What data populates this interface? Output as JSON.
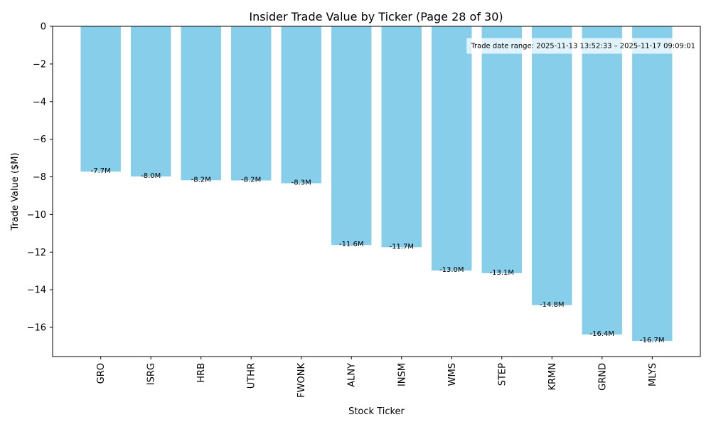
{
  "chart_data": {
    "type": "bar",
    "title": "Insider Trade Value by Ticker (Page 28 of 30)",
    "xlabel": "Stock Ticker",
    "ylabel": "Trade Value ($M)",
    "categories": [
      "GRO",
      "ISRG",
      "HRB",
      "UTHR",
      "FWONK",
      "ALNY",
      "INSM",
      "WMS",
      "STEP",
      "KRMN",
      "GRND",
      "MLYS"
    ],
    "values": [
      -7.72,
      -7.98,
      -8.18,
      -8.19,
      -8.34,
      -11.62,
      -11.74,
      -12.98,
      -13.12,
      -14.82,
      -16.38,
      -16.72
    ],
    "data_labels": [
      "-7.7M",
      "-8.0M",
      "-8.2M",
      "-8.2M",
      "-8.3M",
      "-11.6M",
      "-11.7M",
      "-13.0M",
      "-13.1M",
      "-14.8M",
      "-16.4M",
      "-16.7M"
    ],
    "ylim": [
      -17.55,
      0
    ],
    "yticks": [
      0,
      -2,
      -4,
      -6,
      -8,
      -10,
      -12,
      -14,
      -16
    ],
    "ytick_labels": [
      "0",
      "−2",
      "−4",
      "−6",
      "−8",
      "−10",
      "−12",
      "−14",
      "−16"
    ],
    "bar_color": "#87ceeb",
    "grid": false,
    "annotation": {
      "text": "Trade date range: 2025-11-13 13:52:33 – 2025-11-17 09:09:01",
      "placement": "top-right",
      "box_color": "#ffffff"
    }
  }
}
